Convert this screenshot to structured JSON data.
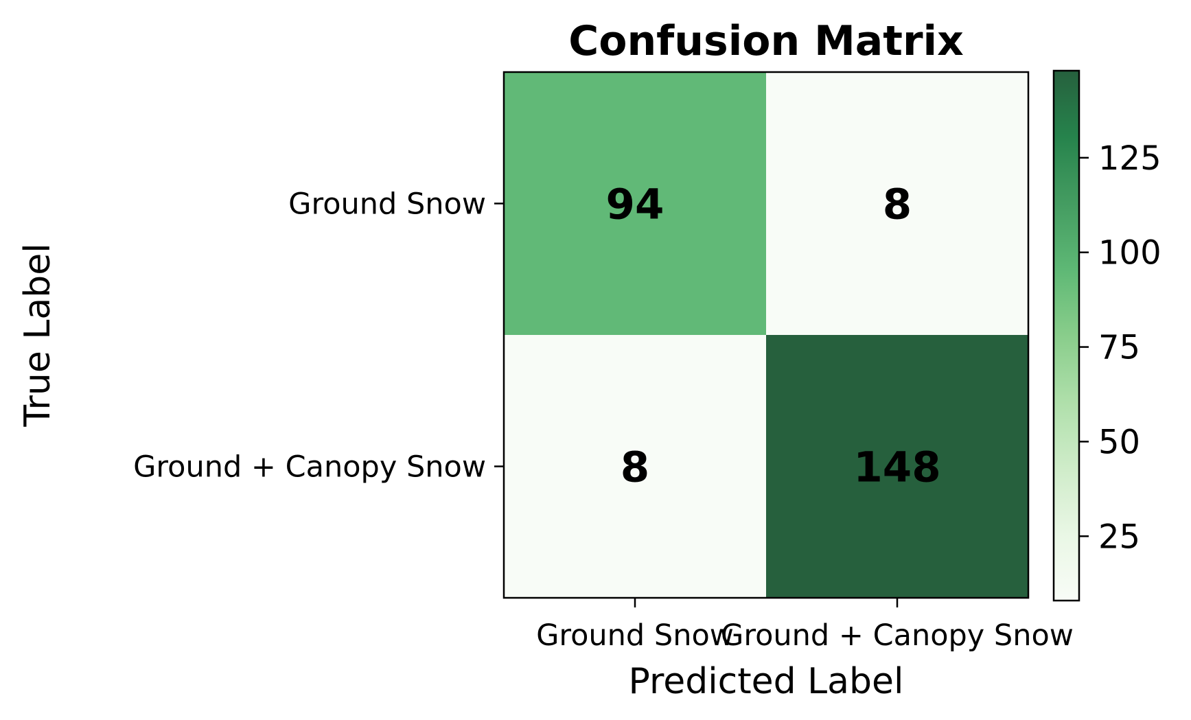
{
  "chart_data": {
    "type": "heatmap",
    "title": "Confusion Matrix",
    "xlabel": "Predicted Label",
    "ylabel": "True Label",
    "x_categories": [
      "Ground Snow",
      "Ground + Canopy Snow"
    ],
    "y_categories": [
      "Ground Snow",
      "Ground + Canopy Snow"
    ],
    "values": [
      [
        94,
        8
      ],
      [
        8,
        148
      ]
    ],
    "colormap": "Greens",
    "colorbar": {
      "range": [
        8,
        148
      ],
      "ticks": [
        25,
        50,
        75,
        100,
        125
      ]
    },
    "colors": {
      "low": "#f7fcf5",
      "high": "#00441b"
    },
    "grid": false
  }
}
